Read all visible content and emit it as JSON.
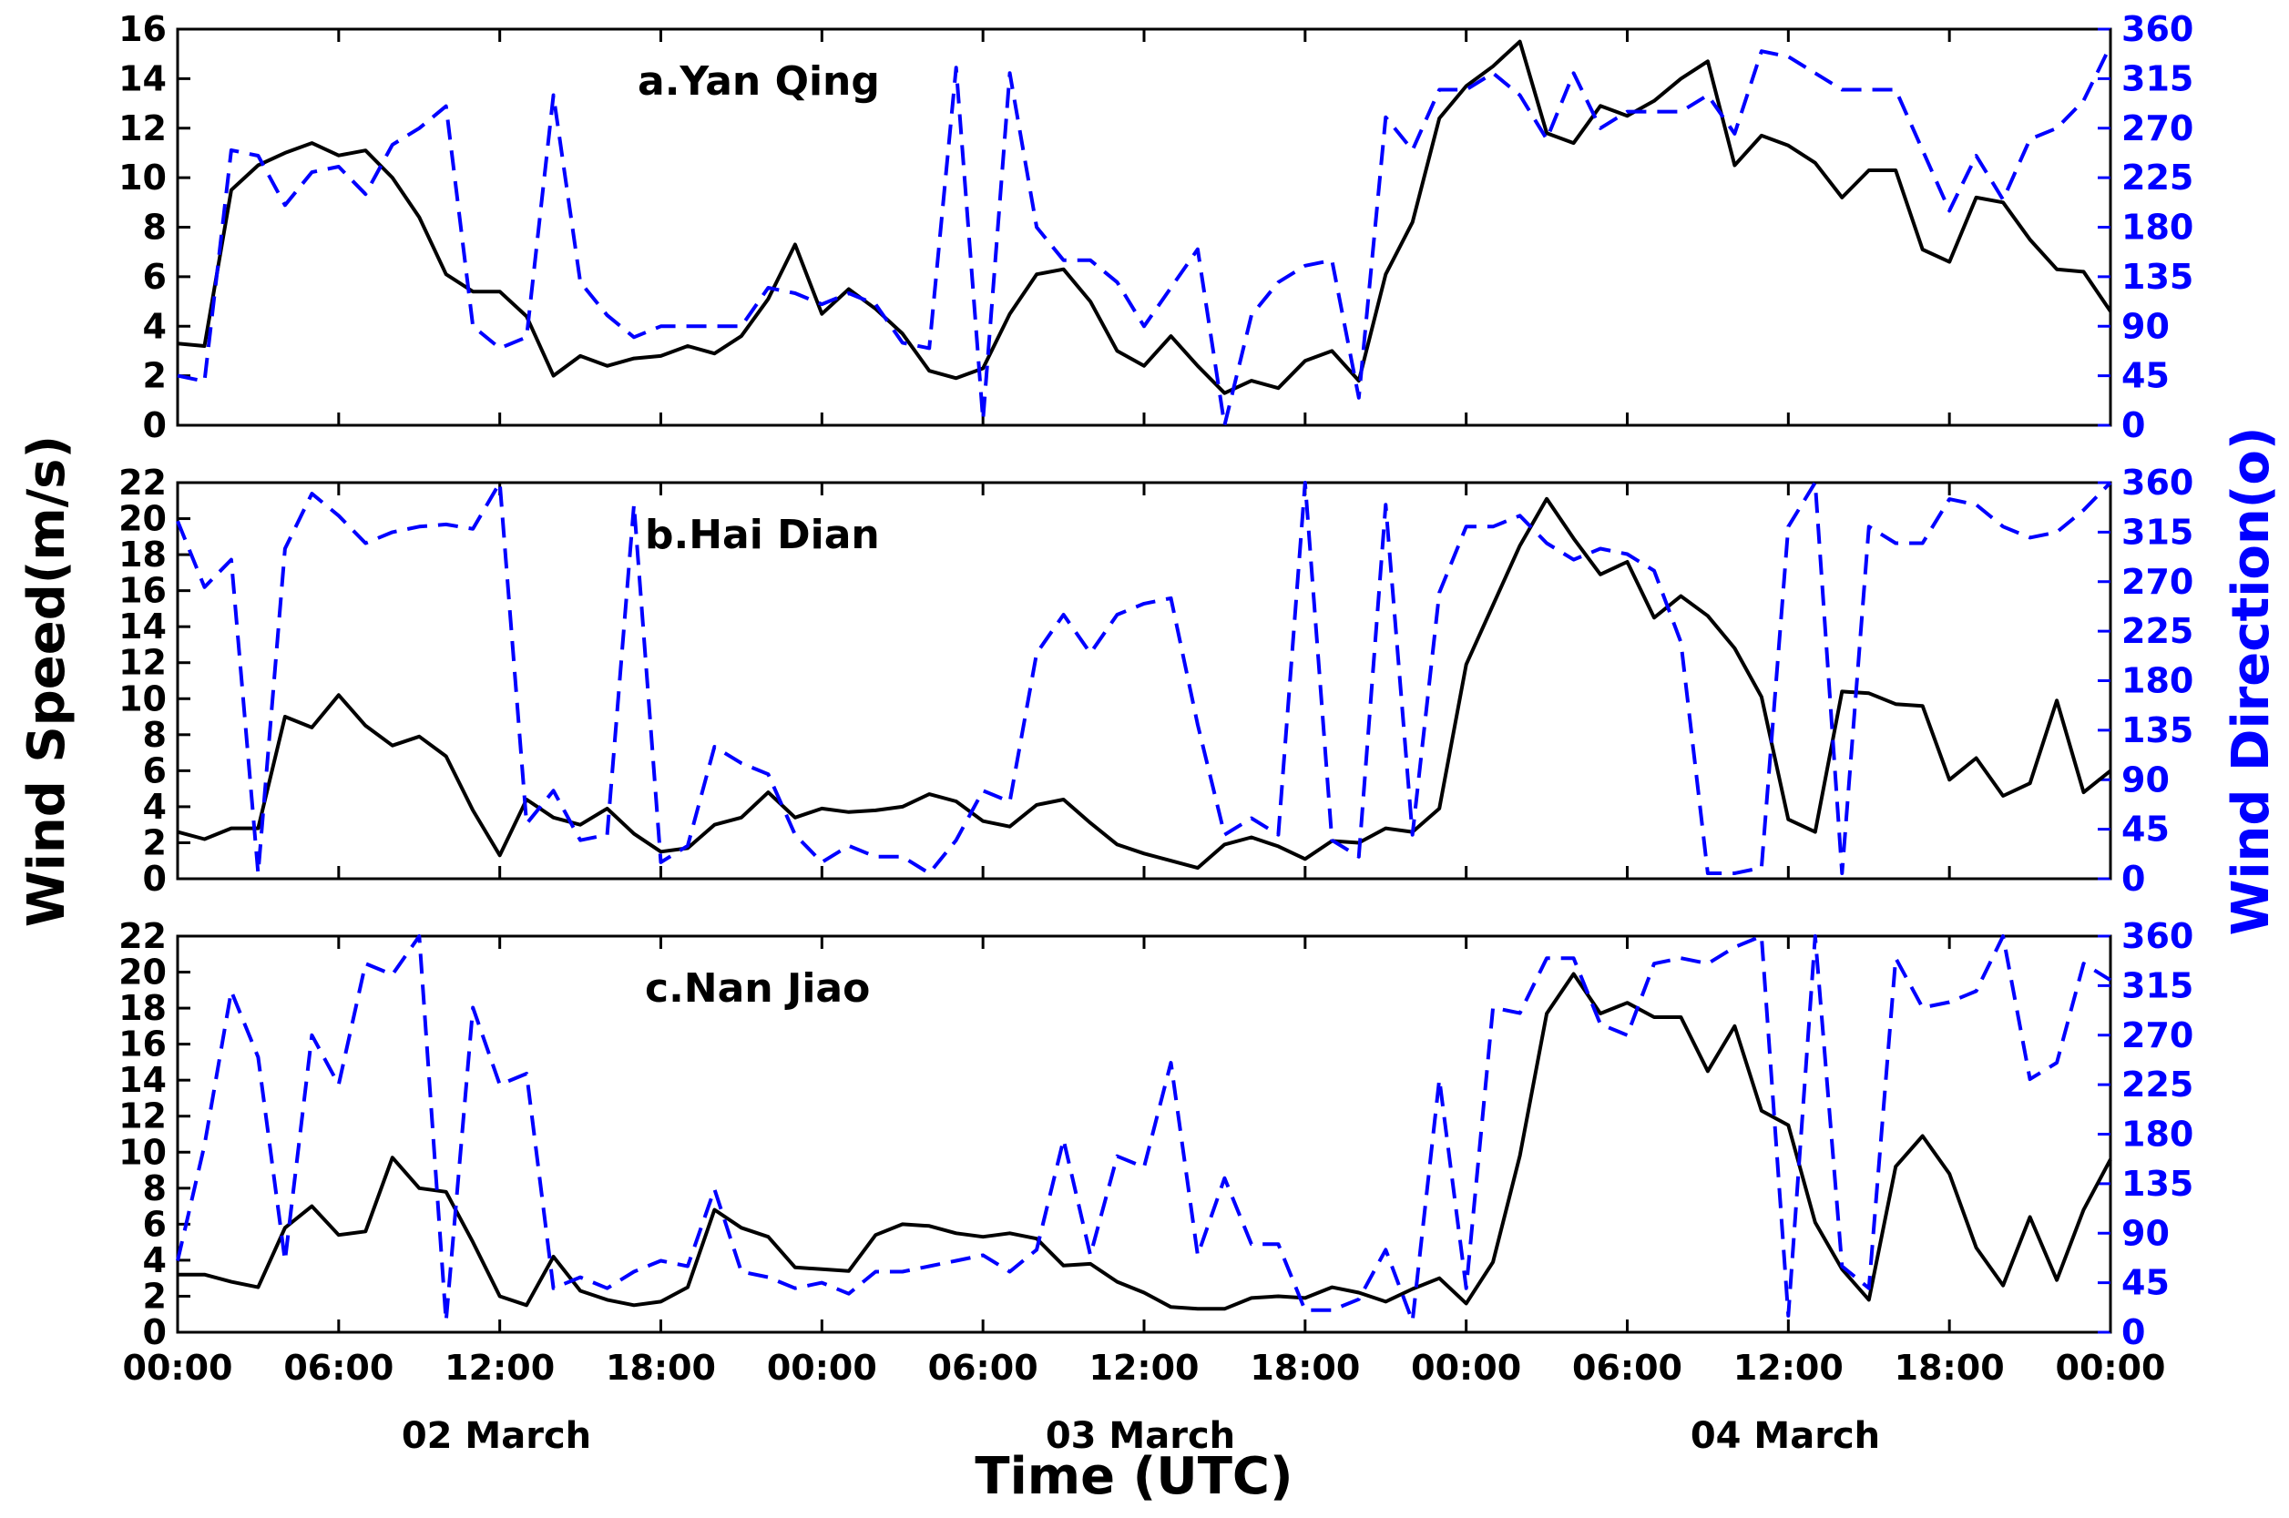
{
  "colors": {
    "speed": "#000000",
    "direction": "#0000ff"
  },
  "chart_data": [
    {
      "type": "line",
      "title": "a.Yan Qing",
      "xlabel": "Time (UTC)",
      "ylabel": "Wind Speed(m/s)",
      "y2label": "Wind Direction(o)",
      "x_unit": "hours since 02 March 00:00 UTC",
      "xlim": [
        0,
        72
      ],
      "ylim": [
        0,
        16
      ],
      "y2lim": [
        0,
        360
      ],
      "yticks": [
        "0",
        "2",
        "4",
        "6",
        "8",
        "10",
        "12",
        "14",
        "16"
      ],
      "y2ticks": [
        "0",
        "45",
        "90",
        "135",
        "180",
        "225",
        "270",
        "315",
        "360"
      ],
      "series": [
        {
          "name": "Wind Speed",
          "axis": "left",
          "style": "solid",
          "x": [
            0,
            1,
            2,
            3,
            4,
            5,
            6,
            7,
            8,
            9,
            10,
            11,
            12,
            13,
            14,
            15,
            16,
            17,
            18,
            19,
            20,
            21,
            22,
            23,
            24,
            25,
            26,
            27,
            28,
            29,
            30,
            31,
            32,
            33,
            34,
            35,
            36,
            37,
            38,
            39,
            40,
            41,
            42,
            43,
            44,
            45,
            46,
            47,
            48,
            49,
            50,
            51,
            52,
            53,
            54,
            55,
            56,
            57,
            58,
            59,
            60,
            61,
            62,
            63,
            64,
            65,
            66,
            67,
            68,
            69,
            70,
            71,
            72
          ],
          "values": [
            3.3,
            3.2,
            9.5,
            10.5,
            11.0,
            11.4,
            10.9,
            11.1,
            10.0,
            8.4,
            6.1,
            5.4,
            5.4,
            4.4,
            2.0,
            2.8,
            2.4,
            2.7,
            2.8,
            3.2,
            2.9,
            3.6,
            5.1,
            7.3,
            4.5,
            5.5,
            4.7,
            3.7,
            2.2,
            1.9,
            2.3,
            4.5,
            6.1,
            6.3,
            5.0,
            3.0,
            2.4,
            3.6,
            2.4,
            1.3,
            1.8,
            1.5,
            2.6,
            3.0,
            1.8,
            6.1,
            8.2,
            12.4,
            13.7,
            14.5,
            15.5,
            11.8,
            11.4,
            12.9,
            12.5,
            13.1,
            14.0,
            14.7,
            10.5,
            11.7,
            11.3,
            10.6,
            9.2,
            10.3,
            10.3,
            7.1,
            6.6,
            9.2,
            9.0,
            7.5,
            6.3,
            6.2,
            4.6
          ]
        },
        {
          "name": "Wind Direction",
          "axis": "right",
          "style": "dashed",
          "x": [
            0,
            1,
            2,
            3,
            4,
            5,
            6,
            7,
            8,
            9,
            10,
            11,
            12,
            13,
            14,
            15,
            16,
            17,
            18,
            19,
            20,
            21,
            22,
            23,
            24,
            25,
            26,
            27,
            28,
            29,
            30,
            31,
            32,
            33,
            34,
            35,
            36,
            37,
            38,
            39,
            40,
            41,
            42,
            43,
            44,
            45,
            46,
            47,
            48,
            49,
            50,
            51,
            52,
            53,
            54,
            55,
            56,
            57,
            58,
            59,
            60,
            61,
            62,
            63,
            64,
            65,
            66,
            67,
            68,
            69,
            70,
            71,
            72
          ],
          "values": [
            45,
            40,
            250,
            245,
            200,
            230,
            235,
            210,
            255,
            270,
            290,
            90,
            70,
            80,
            300,
            130,
            100,
            80,
            90,
            90,
            90,
            90,
            125,
            120,
            110,
            120,
            110,
            75,
            70,
            325,
            5,
            320,
            180,
            150,
            150,
            130,
            90,
            125,
            160,
            0,
            100,
            130,
            145,
            150,
            25,
            280,
            250,
            305,
            305,
            320,
            300,
            260,
            320,
            270,
            285,
            285,
            285,
            300,
            265,
            340,
            335,
            320,
            305,
            305,
            305,
            250,
            195,
            245,
            205,
            260,
            270,
            295,
            345
          ]
        }
      ],
      "xtick_labels": [
        "00:00",
        "06:00",
        "12:00",
        "18:00",
        "00:00",
        "06:00",
        "12:00",
        "18:00",
        "00:00",
        "06:00",
        "12:00",
        "18:00",
        "00:00"
      ],
      "date_labels": [
        "02 March",
        "03 March",
        "04 March"
      ]
    },
    {
      "type": "line",
      "title": "b.Hai Dian",
      "xlim": [
        0,
        72
      ],
      "ylim": [
        0,
        22
      ],
      "y2lim": [
        0,
        360
      ],
      "yticks": [
        "0",
        "2",
        "4",
        "6",
        "8",
        "10",
        "12",
        "14",
        "16",
        "18",
        "20",
        "22"
      ],
      "y2ticks": [
        "0",
        "45",
        "90",
        "135",
        "180",
        "225",
        "270",
        "315",
        "360"
      ],
      "series": [
        {
          "name": "Wind Speed",
          "axis": "left",
          "style": "solid",
          "x": [
            0,
            1,
            2,
            3,
            4,
            5,
            6,
            7,
            8,
            9,
            10,
            11,
            12,
            13,
            14,
            15,
            16,
            17,
            18,
            19,
            20,
            21,
            22,
            23,
            24,
            25,
            26,
            27,
            28,
            29,
            30,
            31,
            32,
            33,
            34,
            35,
            36,
            37,
            38,
            39,
            40,
            41,
            42,
            43,
            44,
            45,
            46,
            47,
            48,
            49,
            50,
            51,
            52,
            53,
            54,
            55,
            56,
            57,
            58,
            59,
            60,
            61,
            62,
            63,
            64,
            65,
            66,
            67,
            68,
            69,
            70,
            71,
            72
          ],
          "values": [
            2.6,
            2.2,
            2.8,
            2.8,
            9.0,
            8.4,
            10.2,
            8.5,
            7.4,
            7.9,
            6.8,
            3.8,
            1.3,
            4.4,
            3.4,
            3.0,
            3.9,
            2.5,
            1.5,
            1.7,
            3.0,
            3.4,
            4.8,
            3.4,
            3.9,
            3.7,
            3.8,
            4.0,
            4.7,
            4.3,
            3.2,
            2.9,
            4.1,
            4.4,
            3.1,
            1.9,
            1.4,
            1.0,
            0.6,
            1.9,
            2.3,
            1.8,
            1.1,
            2.1,
            2.0,
            2.8,
            2.6,
            3.9,
            11.9,
            15.2,
            18.5,
            21.1,
            18.9,
            16.9,
            17.6,
            14.5,
            15.7,
            14.6,
            12.8,
            10.1,
            3.3,
            2.6,
            10.4,
            10.3,
            9.7,
            9.6,
            5.5,
            6.7,
            4.6,
            5.3,
            9.9,
            4.8,
            6.0
          ]
        },
        {
          "name": "Wind Direction",
          "axis": "right",
          "style": "dashed",
          "x": [
            0,
            1,
            2,
            3,
            4,
            5,
            6,
            7,
            8,
            9,
            10,
            11,
            12,
            13,
            14,
            15,
            16,
            17,
            18,
            19,
            20,
            21,
            22,
            23,
            24,
            25,
            26,
            27,
            28,
            29,
            30,
            31,
            32,
            33,
            34,
            35,
            36,
            37,
            38,
            39,
            40,
            41,
            42,
            43,
            44,
            45,
            46,
            47,
            48,
            49,
            50,
            51,
            52,
            53,
            54,
            55,
            56,
            57,
            58,
            59,
            60,
            61,
            62,
            63,
            64,
            65,
            66,
            67,
            68,
            69,
            70,
            71,
            72
          ],
          "values": [
            325,
            265,
            290,
            5,
            300,
            350,
            330,
            305,
            315,
            320,
            322,
            318,
            360,
            50,
            80,
            35,
            40,
            340,
            15,
            30,
            120,
            105,
            95,
            40,
            15,
            30,
            20,
            20,
            5,
            35,
            80,
            70,
            205,
            240,
            205,
            240,
            250,
            255,
            140,
            40,
            55,
            40,
            360,
            35,
            20,
            340,
            40,
            260,
            320,
            320,
            330,
            305,
            290,
            300,
            295,
            280,
            215,
            5,
            5,
            10,
            320,
            360,
            5,
            320,
            305,
            305,
            345,
            340,
            320,
            310,
            315,
            335,
            360
          ]
        }
      ]
    },
    {
      "type": "line",
      "title": "c.Nan Jiao",
      "xlim": [
        0,
        72
      ],
      "ylim": [
        0,
        22
      ],
      "y2lim": [
        0,
        360
      ],
      "yticks": [
        "0",
        "2",
        "4",
        "6",
        "8",
        "10",
        "12",
        "14",
        "16",
        "18",
        "20",
        "22"
      ],
      "y2ticks": [
        "0",
        "45",
        "90",
        "135",
        "180",
        "225",
        "270",
        "315",
        "360"
      ],
      "series": [
        {
          "name": "Wind Speed",
          "axis": "left",
          "style": "solid",
          "x": [
            0,
            1,
            2,
            3,
            4,
            5,
            6,
            7,
            8,
            9,
            10,
            11,
            12,
            13,
            14,
            15,
            16,
            17,
            18,
            19,
            20,
            21,
            22,
            23,
            24,
            25,
            26,
            27,
            28,
            29,
            30,
            31,
            32,
            33,
            34,
            35,
            36,
            37,
            38,
            39,
            40,
            41,
            42,
            43,
            44,
            45,
            46,
            47,
            48,
            49,
            50,
            51,
            52,
            53,
            54,
            55,
            56,
            57,
            58,
            59,
            60,
            61,
            62,
            63,
            64,
            65,
            66,
            67,
            68,
            69,
            70,
            71,
            72
          ],
          "values": [
            3.2,
            3.2,
            2.8,
            2.5,
            5.8,
            7.0,
            5.4,
            5.6,
            9.7,
            8.0,
            7.8,
            5.0,
            2.0,
            1.5,
            4.2,
            2.3,
            1.8,
            1.5,
            1.7,
            2.5,
            6.8,
            5.8,
            5.3,
            3.6,
            3.5,
            3.4,
            5.4,
            6.0,
            5.9,
            5.5,
            5.3,
            5.5,
            5.2,
            3.7,
            3.8,
            2.8,
            2.2,
            1.4,
            1.3,
            1.3,
            1.9,
            2.0,
            1.9,
            2.5,
            2.2,
            1.7,
            2.4,
            3.0,
            1.6,
            3.9,
            9.8,
            17.7,
            19.9,
            17.7,
            18.3,
            17.5,
            17.5,
            14.5,
            17.0,
            12.3,
            11.5,
            6.1,
            3.5,
            1.8,
            9.2,
            10.9,
            8.8,
            4.7,
            2.6,
            6.4,
            2.9,
            6.8,
            9.6
          ]
        },
        {
          "name": "Wind Direction",
          "axis": "right",
          "style": "dashed",
          "x": [
            0,
            1,
            2,
            3,
            4,
            5,
            6,
            7,
            8,
            9,
            10,
            11,
            12,
            13,
            14,
            15,
            16,
            17,
            18,
            19,
            20,
            21,
            22,
            23,
            24,
            25,
            26,
            27,
            28,
            29,
            30,
            31,
            32,
            33,
            34,
            35,
            36,
            37,
            38,
            39,
            40,
            41,
            42,
            43,
            44,
            45,
            46,
            47,
            48,
            49,
            50,
            51,
            52,
            53,
            54,
            55,
            56,
            57,
            58,
            59,
            60,
            61,
            62,
            63,
            64,
            65,
            66,
            67,
            68,
            69,
            70,
            71,
            72
          ],
          "values": [
            65,
            170,
            310,
            250,
            65,
            270,
            225,
            335,
            325,
            360,
            10,
            295,
            225,
            235,
            40,
            50,
            40,
            55,
            65,
            60,
            130,
            55,
            50,
            40,
            45,
            35,
            55,
            55,
            60,
            65,
            70,
            55,
            75,
            175,
            70,
            160,
            150,
            245,
            70,
            140,
            80,
            80,
            20,
            20,
            30,
            75,
            10,
            230,
            40,
            295,
            290,
            340,
            340,
            280,
            270,
            335,
            340,
            335,
            350,
            360,
            15,
            360,
            60,
            40,
            340,
            295,
            300,
            310,
            360,
            230,
            245,
            335,
            320
          ]
        }
      ]
    }
  ]
}
